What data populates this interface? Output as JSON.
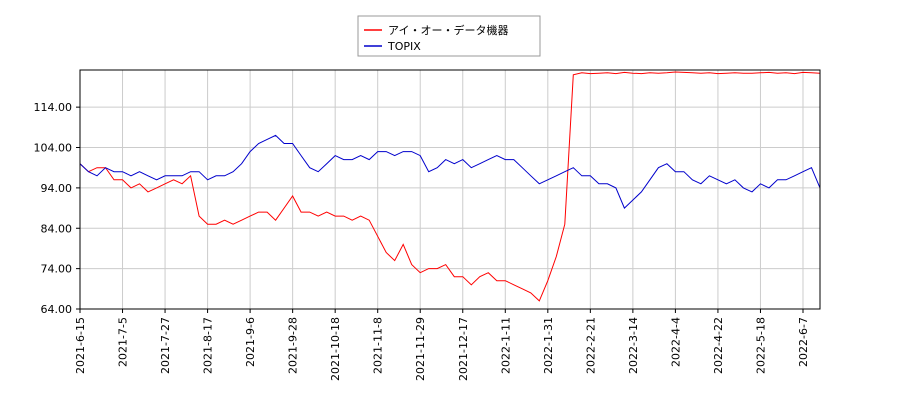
{
  "chart_data": {
    "type": "line",
    "categories": [
      "2021-6-15",
      null,
      null,
      null,
      null,
      "2021-7-5",
      null,
      null,
      null,
      null,
      "2021-7-27",
      null,
      null,
      null,
      null,
      "2021-8-17",
      null,
      null,
      null,
      null,
      "2021-9-6",
      null,
      null,
      null,
      null,
      "2021-9-28",
      null,
      null,
      null,
      null,
      "2021-10-18",
      null,
      null,
      null,
      null,
      "2021-11-8",
      null,
      null,
      null,
      null,
      "2021-11-29",
      null,
      null,
      null,
      null,
      "2021-12-17",
      null,
      null,
      null,
      null,
      "2022-1-11",
      null,
      null,
      null,
      null,
      "2022-1-31",
      null,
      null,
      null,
      null,
      "2022-2-21",
      null,
      null,
      null,
      null,
      "2022-3-14",
      null,
      null,
      null,
      null,
      "2022-4-4",
      null,
      null,
      null,
      null,
      "2022-4-22",
      null,
      null,
      null,
      null,
      "2022-5-18",
      null,
      null,
      null,
      null,
      "2022-6-7",
      null,
      null
    ],
    "series": [
      {
        "name": "アイ・オー・データ機器",
        "color": "#ff0000",
        "values": [
          100,
          98,
          99,
          99,
          96,
          96,
          94,
          95,
          93,
          94,
          95,
          96,
          95,
          97,
          87,
          85,
          85,
          86,
          85,
          86,
          87,
          88,
          88,
          86,
          89,
          92,
          88,
          88,
          87,
          88,
          87,
          87,
          86,
          87,
          86,
          82,
          78,
          76,
          80,
          75,
          73,
          74,
          74,
          75,
          72,
          72,
          70,
          72,
          73,
          71,
          71,
          70,
          69,
          68,
          66,
          71,
          77,
          85,
          122,
          122.5,
          122.3,
          122.4,
          122.5,
          122.3,
          122.6,
          122.4,
          122.3,
          122.5,
          122.4,
          122.5,
          122.7,
          122.6,
          122.5,
          122.4,
          122.5,
          122.3,
          122.4,
          122.5,
          122.4,
          122.4,
          122.5,
          122.6,
          122.4,
          122.5,
          122.3,
          122.6,
          122.5,
          122.4
        ]
      },
      {
        "name": "TOPIX",
        "color": "#0000cc",
        "values": [
          100,
          98,
          97,
          99,
          98,
          98,
          97,
          98,
          97,
          96,
          97,
          97,
          97,
          98,
          98,
          96,
          97,
          97,
          98,
          100,
          103,
          105,
          106,
          107,
          105,
          105,
          102,
          99,
          98,
          100,
          102,
          101,
          101,
          102,
          101,
          103,
          103,
          102,
          103,
          103,
          102,
          98,
          99,
          101,
          100,
          101,
          99,
          100,
          101,
          102,
          101,
          101,
          99,
          97,
          95,
          96,
          97,
          98,
          99,
          97,
          97,
          95,
          95,
          94,
          89,
          91,
          93,
          96,
          99,
          100,
          98,
          98,
          96,
          95,
          97,
          96,
          95,
          96,
          94,
          93,
          95,
          94,
          96,
          96,
          97,
          98,
          99,
          94
        ]
      }
    ],
    "ylim": [
      64,
      123.2
    ],
    "yticks": [
      {
        "value": 64,
        "label": "64.00"
      },
      {
        "value": 74,
        "label": "74.00"
      },
      {
        "value": 84,
        "label": "84.00"
      },
      {
        "value": 94,
        "label": "94.00"
      },
      {
        "value": 104,
        "label": "104.00"
      },
      {
        "value": 114,
        "label": "114.00"
      }
    ],
    "grid": true
  }
}
